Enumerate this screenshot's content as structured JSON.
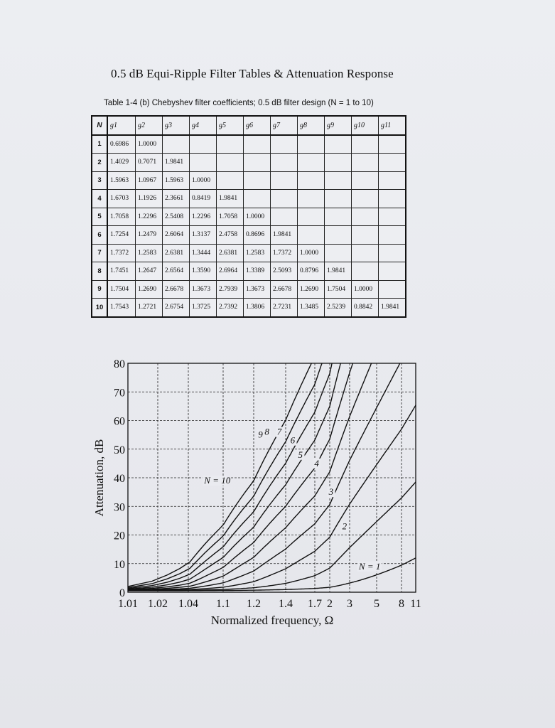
{
  "title": "0.5 dB Equi-Ripple Filter Tables & Attenuation Response",
  "table_caption": "Table 1-4 (b)   Chebyshev filter coefficients; 0.5 dB filter design (N = 1 to 10)",
  "table": {
    "headers": [
      "N",
      "g1",
      "g2",
      "g3",
      "g4",
      "g5",
      "g6",
      "g7",
      "g8",
      "g9",
      "g10",
      "g11"
    ],
    "rows": [
      [
        "1",
        "0.6986",
        "1.0000",
        "",
        "",
        "",
        "",
        "",
        "",
        "",
        "",
        ""
      ],
      [
        "2",
        "1.4029",
        "0.7071",
        "1.9841",
        "",
        "",
        "",
        "",
        "",
        "",
        "",
        ""
      ],
      [
        "3",
        "1.5963",
        "1.0967",
        "1.5963",
        "1.0000",
        "",
        "",
        "",
        "",
        "",
        "",
        ""
      ],
      [
        "4",
        "1.6703",
        "1.1926",
        "2.3661",
        "0.8419",
        "1.9841",
        "",
        "",
        "",
        "",
        "",
        ""
      ],
      [
        "5",
        "1.7058",
        "1.2296",
        "2.5408",
        "1.2296",
        "1.7058",
        "1.0000",
        "",
        "",
        "",
        "",
        ""
      ],
      [
        "6",
        "1.7254",
        "1.2479",
        "2.6064",
        "1.3137",
        "2.4758",
        "0.8696",
        "1.9841",
        "",
        "",
        "",
        ""
      ],
      [
        "7",
        "1.7372",
        "1.2583",
        "2.6381",
        "1.3444",
        "2.6381",
        "1.2583",
        "1.7372",
        "1.0000",
        "",
        "",
        ""
      ],
      [
        "8",
        "1.7451",
        "1.2647",
        "2.6564",
        "1.3590",
        "2.6964",
        "1.3389",
        "2.5093",
        "0.8796",
        "1.9841",
        "",
        ""
      ],
      [
        "9",
        "1.7504",
        "1.2690",
        "2.6678",
        "1.3673",
        "2.7939",
        "1.3673",
        "2.6678",
        "1.2690",
        "1.7504",
        "1.0000",
        ""
      ],
      [
        "10",
        "1.7543",
        "1.2721",
        "2.6754",
        "1.3725",
        "2.7392",
        "1.3806",
        "2.7231",
        "1.3485",
        "2.5239",
        "0.8842",
        "1.9841"
      ]
    ]
  },
  "chart_data": {
    "type": "line",
    "xlabel": "Normalized frequency, Ω",
    "ylabel": "Attenuation, dB",
    "ylim": [
      0,
      80
    ],
    "yticks": [
      "0",
      "10",
      "20",
      "30",
      "40",
      "50",
      "60",
      "70",
      "80"
    ],
    "xticks": [
      "1.01",
      "1.02",
      "1.04",
      "1.1",
      "1.2",
      "1.4",
      "1.7",
      "2",
      "3",
      "5",
      "8",
      "11"
    ],
    "grid": true,
    "ripple_db": 0.5,
    "series": [
      {
        "name": "N = 1",
        "order": 1
      },
      {
        "name": "2",
        "order": 2
      },
      {
        "name": "3",
        "order": 3
      },
      {
        "name": "4",
        "order": 4
      },
      {
        "name": "5",
        "order": 5
      },
      {
        "name": "6",
        "order": 6
      },
      {
        "name": "7",
        "order": 7
      },
      {
        "name": "8",
        "order": 8
      },
      {
        "name": "9",
        "order": 9
      },
      {
        "name": "N = 10",
        "order": 10
      }
    ],
    "curve_color": "#111111",
    "grid_color": "#222222"
  }
}
